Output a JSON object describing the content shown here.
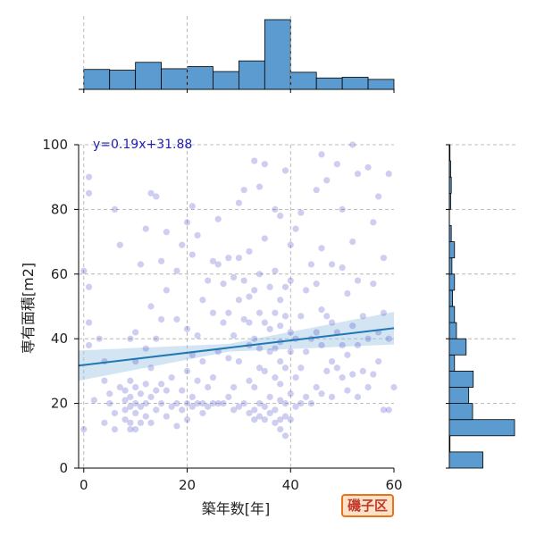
{
  "chart_data": {
    "type": "scatter",
    "xlabel": "築年数[年]",
    "ylabel": "専有面積[m2]",
    "xlim": [
      -1,
      60
    ],
    "ylim": [
      0,
      100
    ],
    "x_ticks": [
      0,
      20,
      40,
      60
    ],
    "y_ticks": [
      0,
      20,
      40,
      60,
      80,
      100
    ],
    "grid": true,
    "colors": {
      "points": "#3a3ac8",
      "regression": "#1f77b4",
      "band": "#9ec4e2",
      "hist": "#5b9bd0"
    },
    "regression": {
      "label": "y=0.19x+31.88",
      "slope": 0.19,
      "intercept": 31.88
    },
    "annotation": "磯子区",
    "x_hist": {
      "bins": [
        0,
        5,
        10,
        15,
        20,
        25,
        30,
        35,
        40,
        45,
        50,
        55,
        60
      ],
      "counts": [
        28,
        27,
        38,
        29,
        32,
        25,
        40,
        98,
        24,
        16,
        17,
        14
      ]
    },
    "y_hist": {
      "bins": [
        0,
        5,
        10,
        15,
        20,
        25,
        30,
        35,
        40,
        45,
        50,
        55,
        60,
        65,
        70,
        75,
        80,
        85,
        90,
        95,
        100
      ],
      "counts": [
        52,
        1,
        101,
        36,
        30,
        37,
        8,
        26,
        11,
        8,
        5,
        8,
        4,
        8,
        3,
        0,
        2,
        3,
        2,
        1
      ]
    },
    "points": [
      [
        0,
        12
      ],
      [
        1,
        38
      ],
      [
        1,
        45
      ],
      [
        1,
        56
      ],
      [
        1,
        85
      ],
      [
        1,
        90
      ],
      [
        0,
        61
      ],
      [
        2,
        21
      ],
      [
        3,
        40
      ],
      [
        4,
        14
      ],
      [
        4,
        27
      ],
      [
        4,
        33
      ],
      [
        5,
        20
      ],
      [
        5,
        23
      ],
      [
        6,
        12
      ],
      [
        6,
        17
      ],
      [
        6,
        80
      ],
      [
        7,
        69
      ],
      [
        7,
        25
      ],
      [
        8,
        15
      ],
      [
        8,
        18
      ],
      [
        8,
        21
      ],
      [
        8,
        24
      ],
      [
        9,
        12
      ],
      [
        9,
        14
      ],
      [
        9,
        19
      ],
      [
        9,
        22
      ],
      [
        9,
        27
      ],
      [
        9,
        40
      ],
      [
        10,
        12
      ],
      [
        10,
        17
      ],
      [
        10,
        20
      ],
      [
        10,
        25
      ],
      [
        10,
        33
      ],
      [
        10,
        42
      ],
      [
        11,
        14
      ],
      [
        11,
        19
      ],
      [
        11,
        23
      ],
      [
        11,
        63
      ],
      [
        12,
        16
      ],
      [
        12,
        20
      ],
      [
        12,
        26
      ],
      [
        12,
        37
      ],
      [
        12,
        74
      ],
      [
        13,
        14
      ],
      [
        13,
        22
      ],
      [
        13,
        31
      ],
      [
        13,
        50
      ],
      [
        13,
        85
      ],
      [
        14,
        18
      ],
      [
        14,
        24
      ],
      [
        14,
        40
      ],
      [
        14,
        84
      ],
      [
        15,
        20
      ],
      [
        15,
        26
      ],
      [
        15,
        46
      ],
      [
        15,
        64
      ],
      [
        16,
        16
      ],
      [
        16,
        24
      ],
      [
        16,
        55
      ],
      [
        16,
        73
      ],
      [
        17,
        19
      ],
      [
        17,
        28
      ],
      [
        18,
        13
      ],
      [
        18,
        20
      ],
      [
        18,
        46
      ],
      [
        18,
        61
      ],
      [
        19,
        18
      ],
      [
        19,
        24
      ],
      [
        19,
        69
      ],
      [
        20,
        15
      ],
      [
        20,
        20
      ],
      [
        20,
        30
      ],
      [
        20,
        43
      ],
      [
        20,
        76
      ],
      [
        21,
        19
      ],
      [
        21,
        22
      ],
      [
        21,
        35
      ],
      [
        21,
        66
      ],
      [
        21,
        81
      ],
      [
        22,
        20
      ],
      [
        22,
        27
      ],
      [
        22,
        41
      ],
      [
        22,
        72
      ],
      [
        23,
        17
      ],
      [
        23,
        20
      ],
      [
        23,
        33
      ],
      [
        23,
        52
      ],
      [
        24,
        19
      ],
      [
        24,
        25
      ],
      [
        24,
        58
      ],
      [
        25,
        20
      ],
      [
        25,
        28
      ],
      [
        25,
        48
      ],
      [
        25,
        64
      ],
      [
        26,
        20
      ],
      [
        26,
        36
      ],
      [
        26,
        63
      ],
      [
        26,
        77
      ],
      [
        27,
        20
      ],
      [
        27,
        45
      ],
      [
        27,
        57
      ],
      [
        28,
        22
      ],
      [
        28,
        34
      ],
      [
        28,
        48
      ],
      [
        28,
        65
      ],
      [
        29,
        18
      ],
      [
        29,
        25
      ],
      [
        29,
        41
      ],
      [
        29,
        59
      ],
      [
        30,
        19
      ],
      [
        30,
        33
      ],
      [
        30,
        52
      ],
      [
        30,
        65
      ],
      [
        30,
        82
      ],
      [
        31,
        20
      ],
      [
        31,
        46
      ],
      [
        31,
        58
      ],
      [
        31,
        86
      ],
      [
        32,
        17
      ],
      [
        32,
        27
      ],
      [
        32,
        38
      ],
      [
        32,
        45
      ],
      [
        32,
        53
      ],
      [
        32,
        67
      ],
      [
        33,
        15
      ],
      [
        33,
        18
      ],
      [
        33,
        25
      ],
      [
        33,
        40
      ],
      [
        33,
        55
      ],
      [
        33,
        95
      ],
      [
        34,
        16
      ],
      [
        34,
        20
      ],
      [
        34,
        31
      ],
      [
        34,
        37
      ],
      [
        34,
        48
      ],
      [
        34,
        60
      ],
      [
        34,
        87
      ],
      [
        35,
        15
      ],
      [
        35,
        19
      ],
      [
        35,
        30
      ],
      [
        35,
        45
      ],
      [
        35,
        71
      ],
      [
        35,
        94
      ],
      [
        36,
        17
      ],
      [
        36,
        22
      ],
      [
        36,
        36
      ],
      [
        36,
        43
      ],
      [
        36,
        56
      ],
      [
        37,
        14
      ],
      [
        37,
        18
      ],
      [
        37,
        28
      ],
      [
        37,
        37
      ],
      [
        37,
        48
      ],
      [
        37,
        61
      ],
      [
        37,
        80
      ],
      [
        38,
        12
      ],
      [
        38,
        15
      ],
      [
        38,
        21
      ],
      [
        38,
        26
      ],
      [
        38,
        33
      ],
      [
        38,
        39
      ],
      [
        38,
        44
      ],
      [
        38,
        52
      ],
      [
        38,
        78
      ],
      [
        39,
        10
      ],
      [
        39,
        16
      ],
      [
        39,
        20
      ],
      [
        39,
        31
      ],
      [
        39,
        47
      ],
      [
        39,
        56
      ],
      [
        39,
        92
      ],
      [
        40,
        15
      ],
      [
        40,
        23
      ],
      [
        40,
        36
      ],
      [
        40,
        42
      ],
      [
        40,
        58
      ],
      [
        40,
        69
      ],
      [
        41,
        19
      ],
      [
        41,
        28
      ],
      [
        41,
        40
      ],
      [
        41,
        74
      ],
      [
        42,
        20
      ],
      [
        42,
        31
      ],
      [
        42,
        47
      ],
      [
        42,
        79
      ],
      [
        43,
        22
      ],
      [
        43,
        36
      ],
      [
        43,
        55
      ],
      [
        44,
        20
      ],
      [
        44,
        40
      ],
      [
        44,
        63
      ],
      [
        45,
        25
      ],
      [
        45,
        42
      ],
      [
        45,
        57
      ],
      [
        45,
        86
      ],
      [
        46,
        23
      ],
      [
        46,
        38
      ],
      [
        46,
        49
      ],
      [
        46,
        68
      ],
      [
        46,
        97
      ],
      [
        47,
        30
      ],
      [
        47,
        47
      ],
      [
        47,
        89
      ],
      [
        48,
        22
      ],
      [
        48,
        33
      ],
      [
        48,
        45
      ],
      [
        48,
        63
      ],
      [
        49,
        31
      ],
      [
        49,
        42
      ],
      [
        49,
        94
      ],
      [
        50,
        28
      ],
      [
        50,
        38
      ],
      [
        50,
        62
      ],
      [
        50,
        80
      ],
      [
        51,
        24
      ],
      [
        51,
        35
      ],
      [
        51,
        54
      ],
      [
        52,
        29
      ],
      [
        52,
        44
      ],
      [
        52,
        70
      ],
      [
        52,
        100
      ],
      [
        53,
        22
      ],
      [
        53,
        38
      ],
      [
        53,
        58
      ],
      [
        53,
        91
      ],
      [
        54,
        30
      ],
      [
        54,
        47
      ],
      [
        55,
        25
      ],
      [
        55,
        40
      ],
      [
        55,
        93
      ],
      [
        56,
        29
      ],
      [
        56,
        57
      ],
      [
        56,
        76
      ],
      [
        57,
        33
      ],
      [
        57,
        42
      ],
      [
        57,
        84
      ],
      [
        58,
        18
      ],
      [
        58,
        48
      ],
      [
        58,
        65
      ],
      [
        59,
        18
      ],
      [
        59,
        40
      ],
      [
        59,
        91
      ],
      [
        60,
        25
      ]
    ]
  }
}
